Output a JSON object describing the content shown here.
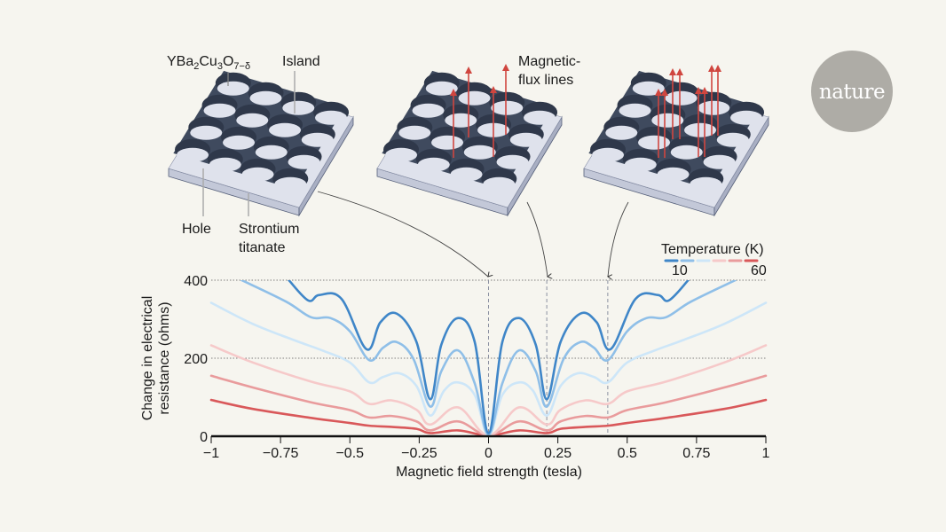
{
  "illustration": {
    "labels": {
      "material": "YBa",
      "material_sub1": "2",
      "material_mid": "Cu",
      "material_sub2": "3",
      "material_o": "O",
      "material_sub3": "7−δ",
      "island": "Island",
      "hole": "Hole",
      "substrate_line1": "Strontium",
      "substrate_line2": "titanate",
      "flux_line1": "Magnetic-",
      "flux_line2": "flux lines"
    },
    "colors": {
      "lattice": "#3f4a5e",
      "substrate": "#dfe2ec",
      "flux": "#d0463f"
    }
  },
  "logo": {
    "text": "nature",
    "color": "#aeaca6"
  },
  "chart_data": {
    "type": "line",
    "xlabel": "Magnetic field strength (tesla)",
    "ylabel_line1": "Change in electrical",
    "ylabel_line2": "resistance (ohms)",
    "xlim": [
      -1,
      1
    ],
    "ylim": [
      0,
      400
    ],
    "x_ticks": [
      "−1",
      "−0.75",
      "−0.5",
      "−0.25",
      "0",
      "0.25",
      "0.5",
      "0.75",
      "1"
    ],
    "x_tick_values": [
      -1,
      -0.75,
      -0.5,
      -0.25,
      0,
      0.25,
      0.5,
      0.75,
      1
    ],
    "y_ticks": [
      "0",
      "200",
      "400"
    ],
    "y_tick_values": [
      0,
      200,
      400
    ],
    "grid": "dotted horizontal at 200 and 400",
    "markers_x": [
      0,
      0.21,
      0.43
    ],
    "legend": {
      "title": "Temperature (K)",
      "low": "10",
      "high": "60",
      "placement": "top-right"
    },
    "series": [
      {
        "color": "#3f86c8",
        "x": [
          -0.72,
          -0.65,
          -0.61,
          -0.53,
          -0.44,
          -0.39,
          -0.33,
          -0.26,
          -0.21,
          -0.17,
          -0.11,
          -0.05,
          0,
          0.05,
          0.11,
          0.17,
          0.21,
          0.26,
          0.33,
          0.39,
          0.44,
          0.53,
          0.61,
          0.65,
          0.72
        ],
        "y": [
          400,
          348,
          362,
          352,
          223,
          292,
          314,
          242,
          95,
          235,
          303,
          242,
          8,
          242,
          303,
          235,
          95,
          242,
          314,
          292,
          223,
          352,
          362,
          348,
          400
        ]
      },
      {
        "color": "#8fbfe8",
        "x": [
          -0.89,
          -0.73,
          -0.64,
          -0.57,
          -0.5,
          -0.43,
          -0.38,
          -0.33,
          -0.27,
          -0.21,
          -0.17,
          -0.11,
          -0.05,
          0,
          0.05,
          0.11,
          0.17,
          0.21,
          0.27,
          0.33,
          0.38,
          0.43,
          0.5,
          0.57,
          0.64,
          0.73,
          0.89
        ],
        "y": [
          400,
          345,
          305,
          303,
          269,
          195,
          227,
          241,
          197,
          76,
          167,
          220,
          136,
          4,
          136,
          220,
          167,
          76,
          197,
          241,
          227,
          195,
          269,
          303,
          305,
          345,
          400
        ]
      },
      {
        "color": "#cde6f8",
        "x": [
          -1,
          -0.85,
          -0.7,
          -0.6,
          -0.5,
          -0.43,
          -0.38,
          -0.32,
          -0.26,
          -0.21,
          -0.16,
          -0.11,
          -0.05,
          0,
          0.05,
          0.11,
          0.16,
          0.21,
          0.26,
          0.32,
          0.38,
          0.43,
          0.5,
          0.6,
          0.7,
          0.85,
          1
        ],
        "y": [
          342,
          288,
          246,
          220,
          189,
          138,
          152,
          161,
          129,
          53,
          117,
          138,
          106,
          2,
          106,
          138,
          117,
          53,
          129,
          161,
          152,
          138,
          189,
          220,
          246,
          288,
          342
        ]
      },
      {
        "color": "#f6c9c9",
        "x": [
          -1,
          -0.85,
          -0.64,
          -0.5,
          -0.43,
          -0.35,
          -0.26,
          -0.21,
          -0.11,
          0,
          0.11,
          0.21,
          0.26,
          0.35,
          0.43,
          0.5,
          0.64,
          0.85,
          1
        ],
        "y": [
          233,
          189,
          140,
          115,
          83,
          92,
          68,
          30,
          74,
          2,
          74,
          30,
          68,
          92,
          83,
          115,
          140,
          189,
          233
        ]
      },
      {
        "color": "#e99b9c",
        "x": [
          -1,
          -0.85,
          -0.64,
          -0.5,
          -0.43,
          -0.35,
          -0.26,
          -0.21,
          -0.11,
          0,
          0.11,
          0.21,
          0.26,
          0.35,
          0.43,
          0.5,
          0.64,
          0.85,
          1
        ],
        "y": [
          155,
          125,
          87,
          67,
          48,
          52,
          38,
          15,
          38,
          2,
          38,
          15,
          38,
          52,
          48,
          67,
          87,
          125,
          155
        ]
      },
      {
        "color": "#d9585a",
        "x": [
          -1,
          -0.85,
          -0.64,
          -0.5,
          -0.43,
          -0.35,
          -0.26,
          -0.21,
          -0.11,
          0,
          0.11,
          0.21,
          0.26,
          0.35,
          0.43,
          0.5,
          0.64,
          0.85,
          1
        ],
        "y": [
          93,
          70,
          47,
          34,
          27,
          24,
          19,
          8,
          15,
          2,
          15,
          8,
          19,
          24,
          27,
          34,
          47,
          70,
          93
        ]
      }
    ]
  }
}
